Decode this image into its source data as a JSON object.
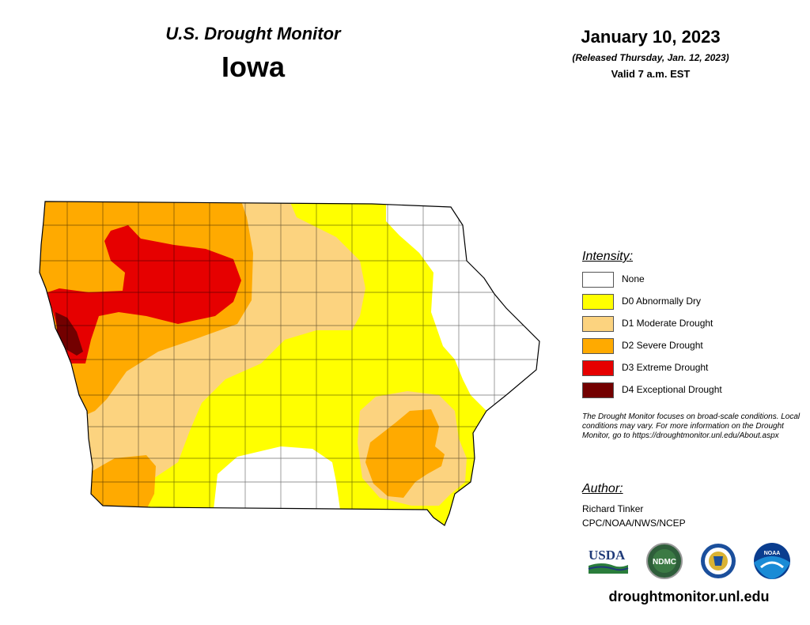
{
  "header": {
    "subtitle": "U.S. Drought Monitor",
    "state": "Iowa",
    "date": "January 10, 2023",
    "released": "(Released Thursday, Jan. 12, 2023)",
    "valid": "Valid 7 a.m. EST"
  },
  "legend": {
    "title": "Intensity:",
    "items": [
      {
        "label": "None",
        "color": "#ffffff"
      },
      {
        "label": "D0 Abnormally Dry",
        "color": "#ffff00"
      },
      {
        "label": "D1 Moderate Drought",
        "color": "#fcd37f"
      },
      {
        "label": "D2 Severe Drought",
        "color": "#ffaa00"
      },
      {
        "label": "D3 Extreme Drought",
        "color": "#e60000"
      },
      {
        "label": "D4 Exceptional Drought",
        "color": "#730000"
      }
    ]
  },
  "note": "The Drought Monitor focuses on broad-scale conditions. Local conditions may vary. For more information on the Drought Monitor, go to https://droughtmonitor.unl.edu/About.aspx",
  "author": {
    "title": "Author:",
    "name": "Richard Tinker",
    "org": "CPC/NOAA/NWS/NCEP"
  },
  "logos": [
    {
      "name": "USDA",
      "icon": "usda-logo"
    },
    {
      "name": "NDMC",
      "icon": "ndmc-logo"
    },
    {
      "name": "",
      "icon": "commerce-seal"
    },
    {
      "name": "NOAA",
      "icon": "noaa-logo"
    }
  ],
  "footer_url": "droughtmonitor.unl.edu"
}
